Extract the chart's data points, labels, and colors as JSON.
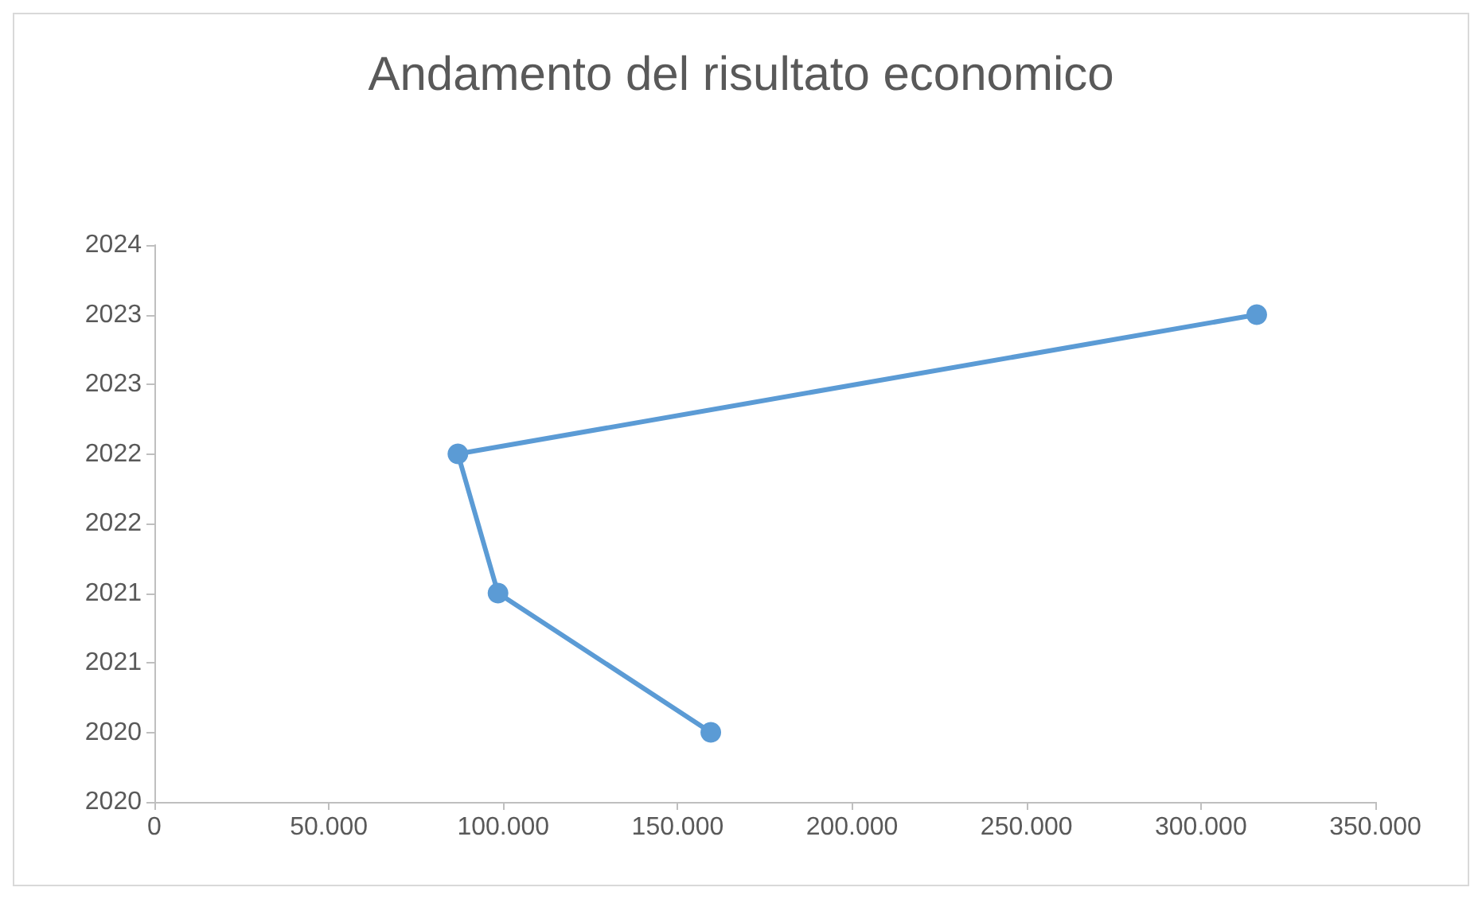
{
  "chart_data": {
    "type": "line",
    "title": "Andamento del risultato economico",
    "x": [
      159500,
      98500,
      87000,
      316000
    ],
    "series": [
      {
        "color": "#5b9bd5",
        "values": [
          2020,
          2021,
          2022,
          2023
        ]
      }
    ],
    "xlim": [
      0,
      350000
    ],
    "xticks": [
      0,
      {
        "value": 50000,
        "label": "50.000"
      },
      {
        "value": 100000,
        "label": "100.000"
      },
      {
        "value": 150000,
        "label": "150.000"
      },
      {
        "value": 200000,
        "label": "200.000"
      },
      {
        "value": 250000,
        "label": "250.000"
      },
      {
        "value": 300000,
        "label": "300.000"
      },
      {
        "value": 350000,
        "label": "350.000"
      }
    ],
    "ylim": [
      2019.5,
      2023.5
    ],
    "yticks": [
      {
        "value": 2019.5,
        "label": "2020"
      },
      2020,
      {
        "value": 2020.5,
        "label": "2021"
      },
      2021,
      {
        "value": 2021.5,
        "label": "2022"
      },
      2022,
      {
        "value": 2022.5,
        "label": "2023"
      },
      2023,
      {
        "value": 2023.5,
        "label": "2024"
      }
    ],
    "grid": false,
    "marker": "circle",
    "line_style": "solid"
  }
}
